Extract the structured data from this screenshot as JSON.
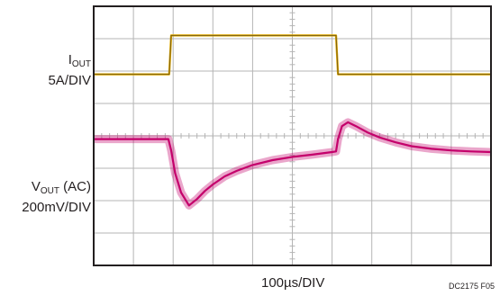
{
  "labels": {
    "iout_main": "I",
    "iout_sub": "OUT",
    "iout_scale": "5A/DIV",
    "vout_main": "V",
    "vout_sub": "OUT",
    "vout_suffix": " (AC)",
    "vout_scale": "200mV/DIV",
    "time_scale": "100µs/DIV",
    "figure_id": "DC2175 F05"
  },
  "chart_data": {
    "type": "line",
    "grid": true,
    "divisions": {
      "x": 10,
      "y": 8
    },
    "xlabel": "100µs/DIV",
    "colors": {
      "frame": "#231f20",
      "grid": "#b5b5b5",
      "iout": "#d9a400",
      "vout": "#c4006b"
    },
    "series": [
      {
        "name": "IOUT",
        "scale": "5A/DIV",
        "unit_per_div": "5A",
        "x_div": [
          0,
          1.9,
          1.95,
          6.1,
          6.15,
          10
        ],
        "y_div": [
          5.9,
          5.9,
          7.1,
          7.1,
          5.9,
          5.9
        ]
      },
      {
        "name": "VOUT (AC)",
        "scale": "200mV/DIV",
        "unit_per_div": "200mV",
        "x_div": [
          0,
          1.88,
          1.95,
          2.05,
          2.2,
          2.4,
          2.6,
          2.8,
          3.0,
          3.3,
          3.6,
          4.0,
          4.5,
          5.0,
          5.5,
          6.0,
          6.1,
          6.15,
          6.25,
          6.4,
          6.6,
          6.9,
          7.2,
          7.6,
          8.0,
          8.5,
          9.0,
          9.5,
          10
        ],
        "y_div": [
          3.9,
          3.9,
          3.55,
          2.85,
          2.25,
          1.85,
          2.05,
          2.3,
          2.5,
          2.75,
          2.92,
          3.1,
          3.25,
          3.35,
          3.42,
          3.5,
          3.52,
          3.9,
          4.3,
          4.42,
          4.3,
          4.1,
          3.95,
          3.8,
          3.68,
          3.6,
          3.55,
          3.52,
          3.5
        ]
      }
    ]
  }
}
